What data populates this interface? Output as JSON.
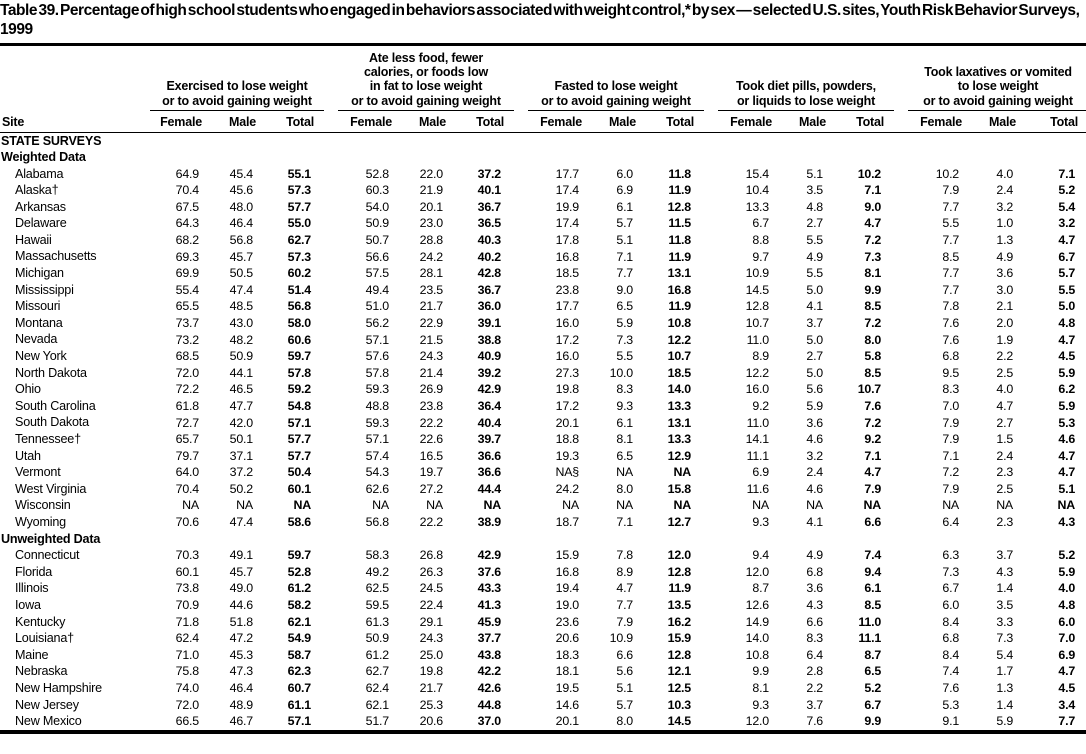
{
  "title": "Table 39. Percentage of high school students who engaged in behaviors associated with weight control,* by sex — selected U.S. sites, Youth Risk Behavior Surveys, 1999",
  "table": {
    "site_header": "Site",
    "subcolumns": [
      "Female",
      "Male",
      "Total"
    ],
    "groups": [
      "Exercised to lose weight\nor to avoid gaining weight",
      "Ate less food, fewer\ncalories, or foods low\nin fat to lose weight\nor to avoid gaining weight",
      "Fasted to lose weight\nor to avoid gaining weight",
      "Took diet pills, powders,\nor liquids to lose weight",
      "Took laxatives or vomited\nto lose weight\nor to avoid gaining weight"
    ],
    "sections": [
      {
        "label": "STATE SURVEYS",
        "rows": []
      },
      {
        "label": "Weighted Data",
        "rows": [
          {
            "site": "Alabama",
            "values": [
              "64.9",
              "45.4",
              "55.1",
              "52.8",
              "22.0",
              "37.2",
              "17.7",
              "6.0",
              "11.8",
              "15.4",
              "5.1",
              "10.2",
              "10.2",
              "4.0",
              "7.1"
            ]
          },
          {
            "site": "Alaska†",
            "values": [
              "70.4",
              "45.6",
              "57.3",
              "60.3",
              "21.9",
              "40.1",
              "17.4",
              "6.9",
              "11.9",
              "10.4",
              "3.5",
              "7.1",
              "7.9",
              "2.4",
              "5.2"
            ]
          },
          {
            "site": "Arkansas",
            "values": [
              "67.5",
              "48.0",
              "57.7",
              "54.0",
              "20.1",
              "36.7",
              "19.9",
              "6.1",
              "12.8",
              "13.3",
              "4.8",
              "9.0",
              "7.7",
              "3.2",
              "5.4"
            ]
          },
          {
            "site": "Delaware",
            "values": [
              "64.3",
              "46.4",
              "55.0",
              "50.9",
              "23.0",
              "36.5",
              "17.4",
              "5.7",
              "11.5",
              "6.7",
              "2.7",
              "4.7",
              "5.5",
              "1.0",
              "3.2"
            ]
          },
          {
            "site": "Hawaii",
            "values": [
              "68.2",
              "56.8",
              "62.7",
              "50.7",
              "28.8",
              "40.3",
              "17.8",
              "5.1",
              "11.8",
              "8.8",
              "5.5",
              "7.2",
              "7.7",
              "1.3",
              "4.7"
            ]
          },
          {
            "site": "Massachusetts",
            "values": [
              "69.3",
              "45.7",
              "57.3",
              "56.6",
              "24.2",
              "40.2",
              "16.8",
              "7.1",
              "11.9",
              "9.7",
              "4.9",
              "7.3",
              "8.5",
              "4.9",
              "6.7"
            ]
          },
          {
            "site": "Michigan",
            "values": [
              "69.9",
              "50.5",
              "60.2",
              "57.5",
              "28.1",
              "42.8",
              "18.5",
              "7.7",
              "13.1",
              "10.9",
              "5.5",
              "8.1",
              "7.7",
              "3.6",
              "5.7"
            ]
          },
          {
            "site": "Mississippi",
            "values": [
              "55.4",
              "47.4",
              "51.4",
              "49.4",
              "23.5",
              "36.7",
              "23.8",
              "9.0",
              "16.8",
              "14.5",
              "5.0",
              "9.9",
              "7.7",
              "3.0",
              "5.5"
            ]
          },
          {
            "site": "Missouri",
            "values": [
              "65.5",
              "48.5",
              "56.8",
              "51.0",
              "21.7",
              "36.0",
              "17.7",
              "6.5",
              "11.9",
              "12.8",
              "4.1",
              "8.5",
              "7.8",
              "2.1",
              "5.0"
            ]
          },
          {
            "site": "Montana",
            "values": [
              "73.7",
              "43.0",
              "58.0",
              "56.2",
              "22.9",
              "39.1",
              "16.0",
              "5.9",
              "10.8",
              "10.7",
              "3.7",
              "7.2",
              "7.6",
              "2.0",
              "4.8"
            ]
          },
          {
            "site": "Nevada",
            "values": [
              "73.2",
              "48.2",
              "60.6",
              "57.1",
              "21.5",
              "38.8",
              "17.2",
              "7.3",
              "12.2",
              "11.0",
              "5.0",
              "8.0",
              "7.6",
              "1.9",
              "4.7"
            ]
          },
          {
            "site": "New York",
            "values": [
              "68.5",
              "50.9",
              "59.7",
              "57.6",
              "24.3",
              "40.9",
              "16.0",
              "5.5",
              "10.7",
              "8.9",
              "2.7",
              "5.8",
              "6.8",
              "2.2",
              "4.5"
            ]
          },
          {
            "site": "North Dakota",
            "values": [
              "72.0",
              "44.1",
              "57.8",
              "57.8",
              "21.4",
              "39.2",
              "27.3",
              "10.0",
              "18.5",
              "12.2",
              "5.0",
              "8.5",
              "9.5",
              "2.5",
              "5.9"
            ]
          },
          {
            "site": "Ohio",
            "values": [
              "72.2",
              "46.5",
              "59.2",
              "59.3",
              "26.9",
              "42.9",
              "19.8",
              "8.3",
              "14.0",
              "16.0",
              "5.6",
              "10.7",
              "8.3",
              "4.0",
              "6.2"
            ]
          },
          {
            "site": "South Carolina",
            "values": [
              "61.8",
              "47.7",
              "54.8",
              "48.8",
              "23.8",
              "36.4",
              "17.2",
              "9.3",
              "13.3",
              "9.2",
              "5.9",
              "7.6",
              "7.0",
              "4.7",
              "5.9"
            ]
          },
          {
            "site": "South Dakota",
            "values": [
              "72.7",
              "42.0",
              "57.1",
              "59.3",
              "22.2",
              "40.4",
              "20.1",
              "6.1",
              "13.1",
              "11.0",
              "3.6",
              "7.2",
              "7.9",
              "2.7",
              "5.3"
            ]
          },
          {
            "site": "Tennessee†",
            "values": [
              "65.7",
              "50.1",
              "57.7",
              "57.1",
              "22.6",
              "39.7",
              "18.8",
              "8.1",
              "13.3",
              "14.1",
              "4.6",
              "9.2",
              "7.9",
              "1.5",
              "4.6"
            ]
          },
          {
            "site": "Utah",
            "values": [
              "79.7",
              "37.1",
              "57.7",
              "57.4",
              "16.5",
              "36.6",
              "19.3",
              "6.5",
              "12.9",
              "11.1",
              "3.2",
              "7.1",
              "7.1",
              "2.4",
              "4.7"
            ]
          },
          {
            "site": "Vermont",
            "values": [
              "64.0",
              "37.2",
              "50.4",
              "54.3",
              "19.7",
              "36.6",
              "NA§",
              "NA",
              "NA",
              "6.9",
              "2.4",
              "4.7",
              "7.2",
              "2.3",
              "4.7"
            ]
          },
          {
            "site": "West Virginia",
            "values": [
              "70.4",
              "50.2",
              "60.1",
              "62.6",
              "27.2",
              "44.4",
              "24.2",
              "8.0",
              "15.8",
              "11.6",
              "4.6",
              "7.9",
              "7.9",
              "2.5",
              "5.1"
            ]
          },
          {
            "site": "Wisconsin",
            "values": [
              "NA",
              "NA",
              "NA",
              "NA",
              "NA",
              "NA",
              "NA",
              "NA",
              "NA",
              "NA",
              "NA",
              "NA",
              "NA",
              "NA",
              "NA"
            ]
          },
          {
            "site": "Wyoming",
            "values": [
              "70.6",
              "47.4",
              "58.6",
              "56.8",
              "22.2",
              "38.9",
              "18.7",
              "7.1",
              "12.7",
              "9.3",
              "4.1",
              "6.6",
              "6.4",
              "2.3",
              "4.3"
            ]
          }
        ]
      },
      {
        "label": "Unweighted Data",
        "rows": [
          {
            "site": "Connecticut",
            "values": [
              "70.3",
              "49.1",
              "59.7",
              "58.3",
              "26.8",
              "42.9",
              "15.9",
              "7.8",
              "12.0",
              "9.4",
              "4.9",
              "7.4",
              "6.3",
              "3.7",
              "5.2"
            ]
          },
          {
            "site": "Florida",
            "values": [
              "60.1",
              "45.7",
              "52.8",
              "49.2",
              "26.3",
              "37.6",
              "16.8",
              "8.9",
              "12.8",
              "12.0",
              "6.8",
              "9.4",
              "7.3",
              "4.3",
              "5.9"
            ]
          },
          {
            "site": "Illinois",
            "values": [
              "73.8",
              "49.0",
              "61.2",
              "62.5",
              "24.5",
              "43.3",
              "19.4",
              "4.7",
              "11.9",
              "8.7",
              "3.6",
              "6.1",
              "6.7",
              "1.4",
              "4.0"
            ]
          },
          {
            "site": "Iowa",
            "values": [
              "70.9",
              "44.6",
              "58.2",
              "59.5",
              "22.4",
              "41.3",
              "19.0",
              "7.7",
              "13.5",
              "12.6",
              "4.3",
              "8.5",
              "6.0",
              "3.5",
              "4.8"
            ]
          },
          {
            "site": "Kentucky",
            "values": [
              "71.8",
              "51.8",
              "62.1",
              "61.3",
              "29.1",
              "45.9",
              "23.6",
              "7.9",
              "16.2",
              "14.9",
              "6.6",
              "11.0",
              "8.4",
              "3.3",
              "6.0"
            ]
          },
          {
            "site": "Louisiana†",
            "values": [
              "62.4",
              "47.2",
              "54.9",
              "50.9",
              "24.3",
              "37.7",
              "20.6",
              "10.9",
              "15.9",
              "14.0",
              "8.3",
              "11.1",
              "6.8",
              "7.3",
              "7.0"
            ]
          },
          {
            "site": "Maine",
            "values": [
              "71.0",
              "45.3",
              "58.7",
              "61.2",
              "25.0",
              "43.8",
              "18.3",
              "6.6",
              "12.8",
              "10.8",
              "6.4",
              "8.7",
              "8.4",
              "5.4",
              "6.9"
            ]
          },
          {
            "site": "Nebraska",
            "values": [
              "75.8",
              "47.3",
              "62.3",
              "62.7",
              "19.8",
              "42.2",
              "18.1",
              "5.6",
              "12.1",
              "9.9",
              "2.8",
              "6.5",
              "7.4",
              "1.7",
              "4.7"
            ]
          },
          {
            "site": "New Hampshire",
            "values": [
              "74.0",
              "46.4",
              "60.7",
              "62.4",
              "21.7",
              "42.6",
              "19.5",
              "5.1",
              "12.5",
              "8.1",
              "2.2",
              "5.2",
              "7.6",
              "1.3",
              "4.5"
            ]
          },
          {
            "site": "New Jersey",
            "values": [
              "72.0",
              "48.9",
              "61.1",
              "62.1",
              "25.3",
              "44.8",
              "14.6",
              "5.7",
              "10.3",
              "9.3",
              "3.7",
              "6.7",
              "5.3",
              "1.4",
              "3.4"
            ]
          },
          {
            "site": "New Mexico",
            "values": [
              "66.5",
              "46.7",
              "57.1",
              "51.7",
              "20.6",
              "37.0",
              "20.1",
              "8.0",
              "14.5",
              "12.0",
              "7.6",
              "9.9",
              "9.1",
              "5.9",
              "7.7"
            ]
          }
        ]
      }
    ]
  }
}
